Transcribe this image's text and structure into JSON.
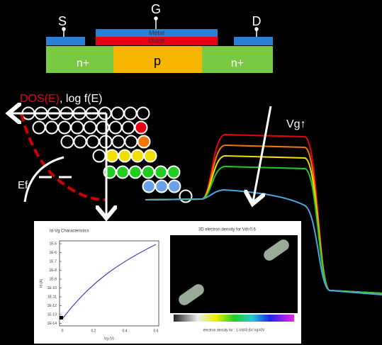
{
  "device": {
    "source": "S",
    "gate": "G",
    "drain": "D",
    "metal": "Metal",
    "oxide": "Oxide",
    "source_region": "n+",
    "body": "p",
    "drain_region": "n+"
  },
  "band": {
    "dos": "DOS(E)",
    "log_f": ", log f(E)",
    "fermi": "Ef"
  },
  "curves": {
    "label": "Vg↑"
  },
  "inset": {
    "left_title": "Id-Vg Characteristics",
    "right_title": "3D electron density for Vd=0.6",
    "yticks": [
      "1E-5",
      "1E-6",
      "1E-7",
      "1E-8",
      "1E-9",
      "1E-10",
      "1E-11",
      "1E-12",
      "1E-13",
      "1E-14"
    ],
    "xticks": [
      "0",
      "0.2",
      "0.4",
      "0.6"
    ],
    "ylabel": "Id (A)",
    "xlabel": "Vg (V)",
    "colorbar_label": "electron density for : 1-Vd=0.6V-Vg=0V"
  }
}
